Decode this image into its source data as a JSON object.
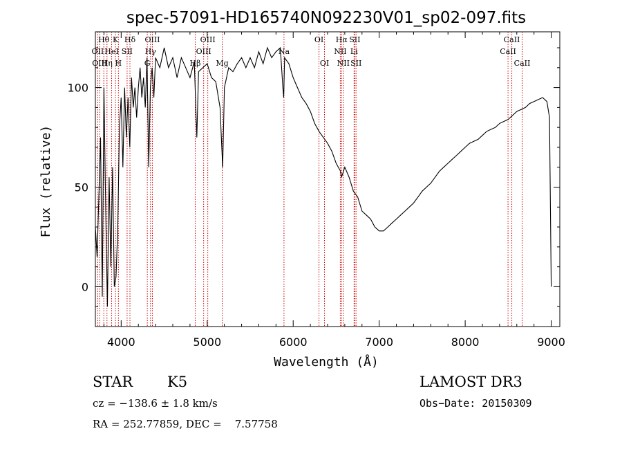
{
  "chart_data": {
    "type": "line",
    "title": "spec-57091-HD165740N092230V01_sp02-097.fits",
    "xlabel": "Wavelength (Å)",
    "ylabel": "Flux (relative)",
    "xlim": [
      3700,
      9100
    ],
    "ylim": [
      -20,
      128
    ],
    "x_ticks": [
      4000,
      5000,
      6000,
      7000,
      8000,
      9000
    ],
    "y_ticks": [
      0,
      50,
      100
    ],
    "line_color": "#000000",
    "marker_color": "#cc0000",
    "spectrum": {
      "x": [
        3700,
        3720,
        3740,
        3760,
        3780,
        3800,
        3820,
        3840,
        3860,
        3880,
        3900,
        3920,
        3940,
        3960,
        3980,
        4000,
        4020,
        4040,
        4060,
        4080,
        4100,
        4120,
        4140,
        4160,
        4180,
        4200,
        4220,
        4240,
        4260,
        4280,
        4300,
        4320,
        4340,
        4360,
        4380,
        4400,
        4450,
        4500,
        4550,
        4600,
        4650,
        4700,
        4750,
        4800,
        4850,
        4880,
        4900,
        4950,
        5000,
        5050,
        5100,
        5150,
        5170,
        5180,
        5200,
        5250,
        5300,
        5350,
        5400,
        5450,
        5500,
        5550,
        5600,
        5650,
        5700,
        5750,
        5800,
        5850,
        5880,
        5890,
        5900,
        5950,
        6000,
        6050,
        6100,
        6150,
        6200,
        6250,
        6300,
        6350,
        6400,
        6450,
        6500,
        6550,
        6562,
        6600,
        6650,
        6700,
        6750,
        6800,
        6850,
        6900,
        6950,
        7000,
        7050,
        7100,
        7150,
        7200,
        7250,
        7300,
        7350,
        7400,
        7450,
        7500,
        7550,
        7600,
        7650,
        7700,
        7750,
        7800,
        7850,
        7900,
        7950,
        8000,
        8050,
        8100,
        8150,
        8200,
        8250,
        8300,
        8350,
        8400,
        8450,
        8500,
        8550,
        8600,
        8650,
        8700,
        8750,
        8800,
        8850,
        8900,
        8950,
        8980,
        9000
      ],
      "y": [
        30,
        15,
        45,
        75,
        -5,
        100,
        40,
        -10,
        55,
        10,
        60,
        0,
        5,
        30,
        80,
        95,
        60,
        100,
        75,
        95,
        70,
        105,
        90,
        100,
        85,
        100,
        110,
        95,
        105,
        90,
        115,
        60,
        100,
        110,
        95,
        115,
        110,
        120,
        110,
        115,
        105,
        115,
        110,
        105,
        113,
        75,
        108,
        110,
        112,
        105,
        103,
        90,
        70,
        60,
        100,
        110,
        108,
        112,
        115,
        110,
        115,
        110,
        118,
        112,
        120,
        115,
        118,
        120,
        100,
        95,
        115,
        112,
        105,
        100,
        95,
        92,
        88,
        82,
        78,
        75,
        72,
        68,
        62,
        58,
        55,
        60,
        55,
        48,
        45,
        38,
        36,
        34,
        30,
        28,
        28,
        30,
        32,
        34,
        36,
        38,
        40,
        42,
        45,
        48,
        50,
        52,
        55,
        58,
        60,
        62,
        64,
        66,
        68,
        70,
        72,
        73,
        74,
        76,
        78,
        79,
        80,
        82,
        83,
        84,
        86,
        88,
        89,
        90,
        92,
        93,
        94,
        95,
        93,
        85,
        0
      ]
    },
    "lines": [
      {
        "label": "Hθ",
        "x": 3798,
        "row": 1
      },
      {
        "label": "OII",
        "x": 3727,
        "row": 2
      },
      {
        "label": "OIII",
        "x": 3750,
        "row": 3
      },
      {
        "label": "K",
        "x": 3934,
        "row": 1
      },
      {
        "label": "HeI",
        "x": 3889,
        "row": 2
      },
      {
        "label": "Hη",
        "x": 3835,
        "row": 3
      },
      {
        "label": "SII",
        "x": 4069,
        "row": 2
      },
      {
        "label": "H",
        "x": 3968,
        "row": 3
      },
      {
        "label": "Hδ",
        "x": 4102,
        "row": 1
      },
      {
        "label": "G",
        "x": 4304,
        "row": 3
      },
      {
        "label": "OIII",
        "x": 4363,
        "row": 1
      },
      {
        "label": "Hγ",
        "x": 4341,
        "row": 2
      },
      {
        "label": "Hβ",
        "x": 4861,
        "row": 3
      },
      {
        "label": "OIII",
        "x": 4959,
        "row": 2
      },
      {
        "label": "OIII",
        "x": 5007,
        "row": 1
      },
      {
        "label": "Mg",
        "x": 5175,
        "row": 3
      },
      {
        "label": "Na",
        "x": 5893,
        "row": 2
      },
      {
        "label": "OI",
        "x": 6300,
        "row": 1
      },
      {
        "label": "OI",
        "x": 6364,
        "row": 3
      },
      {
        "label": "Hα",
        "x": 6563,
        "row": 1
      },
      {
        "label": "NII",
        "x": 6548,
        "row": 2
      },
      {
        "label": "NII",
        "x": 6583,
        "row": 3
      },
      {
        "label": "SII",
        "x": 6716,
        "row": 1
      },
      {
        "label": "Li",
        "x": 6708,
        "row": 2
      },
      {
        "label": "SII",
        "x": 6731,
        "row": 3
      },
      {
        "label": "CaII",
        "x": 8498,
        "row": 2
      },
      {
        "label": "CaII",
        "x": 8542,
        "row": 1
      },
      {
        "label": "CaII",
        "x": 8662,
        "row": 3
      }
    ]
  },
  "info": {
    "object_class": "STAR",
    "subclass": "K5",
    "survey": "LAMOST DR3",
    "redshift": "cz = −138.6 ± 1.8 km/s",
    "obs_date": "Obs−Date: 20150309",
    "coords": "RA = 252.77859, DEC =    7.57758"
  }
}
